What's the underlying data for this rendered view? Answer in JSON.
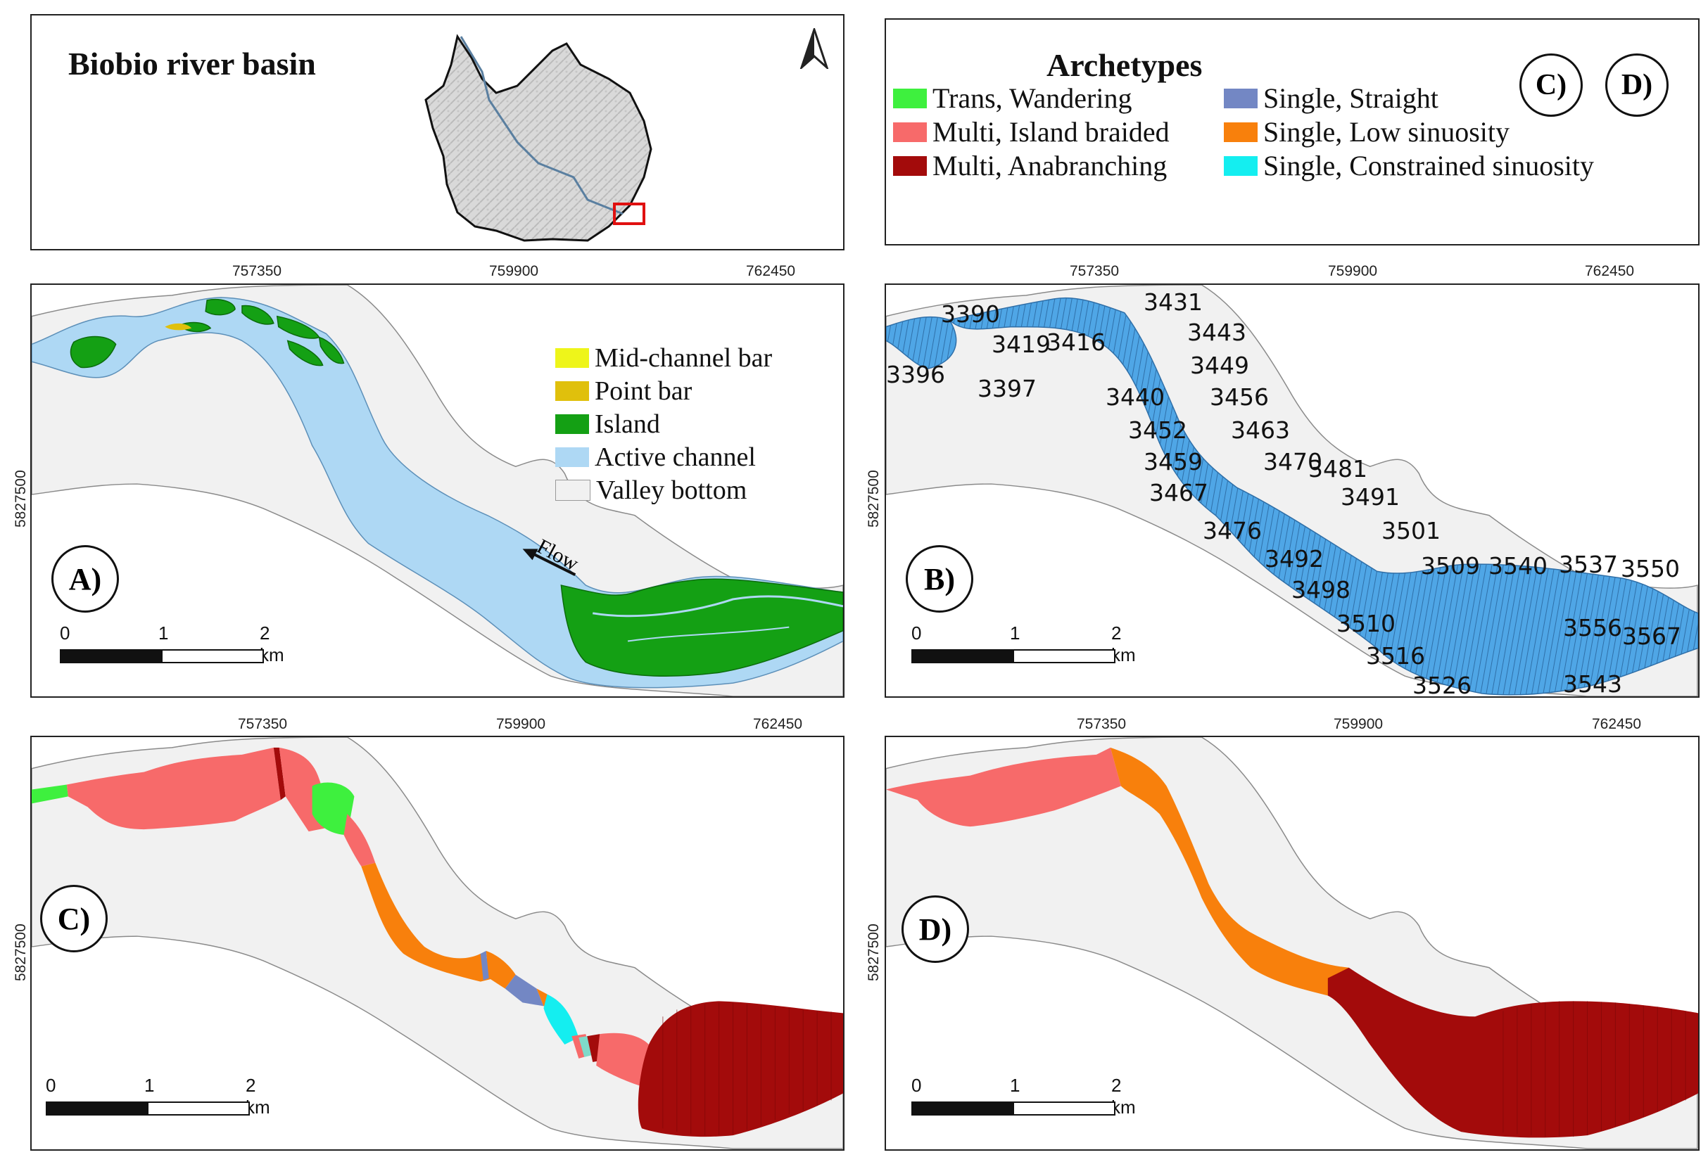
{
  "overview": {
    "title": "Biobio river basin"
  },
  "archetypes": {
    "title": "Archetypes",
    "badge_c": "C)",
    "badge_d": "D)",
    "items": [
      {
        "label": "Trans, Wandering",
        "color": "#3ef03e"
      },
      {
        "label": "Multi, Island braided",
        "color": "#f76a6a"
      },
      {
        "label": "Multi, Anabranching",
        "color": "#a30b0b"
      },
      {
        "label": "Single, Straight",
        "color": "#7387c4"
      },
      {
        "label": "Single, Low sinuosity",
        "color": "#f8800c"
      },
      {
        "label": "Single, Constrained sinuosity",
        "color": "#14eef0"
      }
    ]
  },
  "axes": {
    "x_ticks": [
      "757350",
      "759900",
      "762450"
    ],
    "y_tick": "5827500"
  },
  "scale": {
    "ticks": [
      "0",
      "1",
      "2 km"
    ]
  },
  "panel_a": {
    "badge": "A)",
    "flow_label": "Flow",
    "legend": [
      {
        "label": "Mid-channel bar",
        "color": "#eef51a"
      },
      {
        "label": "Point bar",
        "color": "#e0c00c"
      },
      {
        "label": "Island",
        "color": "#14a014"
      },
      {
        "label": "Active channel",
        "color": "#aed8f4"
      },
      {
        "label": "Valley bottom",
        "color": "#f1f1f1"
      }
    ]
  },
  "panel_b": {
    "badge": "B)",
    "reaches": [
      "3390",
      "3419",
      "3416",
      "3431",
      "3443",
      "3396",
      "3397",
      "3449",
      "3440",
      "3456",
      "3452",
      "3463",
      "3459",
      "3470",
      "3481",
      "3467",
      "3491",
      "3476",
      "3501",
      "3492",
      "3509",
      "3540",
      "3537",
      "3550",
      "3498",
      "3510",
      "3556",
      "3567",
      "3516",
      "3543",
      "3526"
    ]
  },
  "panel_c": {
    "badge": "C)"
  },
  "panel_d": {
    "badge": "D)"
  }
}
